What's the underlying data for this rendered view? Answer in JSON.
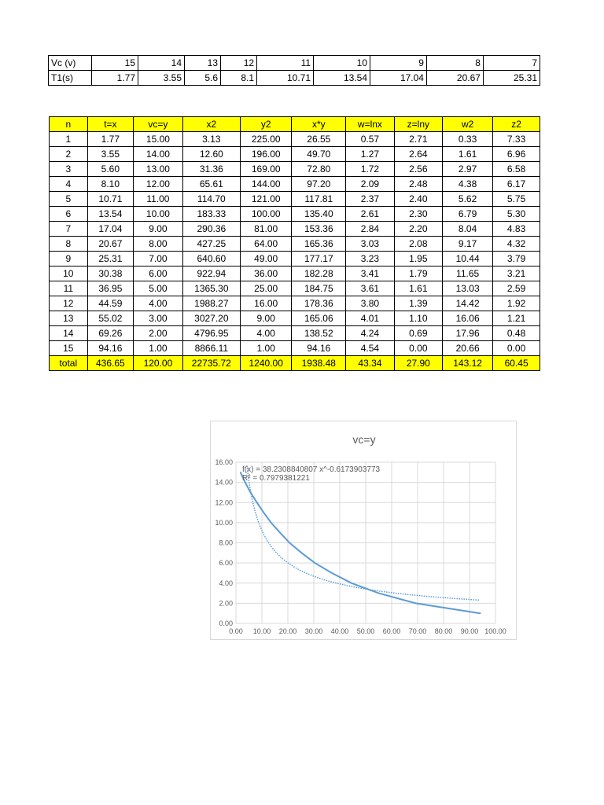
{
  "top_table": {
    "rows": [
      {
        "label": "Vc (v)",
        "values": [
          "15",
          "14",
          "13",
          "12",
          "11",
          "10",
          "9",
          "8",
          "7"
        ]
      },
      {
        "label": "T1(s)",
        "values": [
          "1.77",
          "3.55",
          "5.6",
          "8.1",
          "10.71",
          "13.54",
          "17.04",
          "20.67",
          "25.31"
        ]
      }
    ]
  },
  "main_table": {
    "headers": [
      "n",
      "t=x",
      "vc=y",
      "x2",
      "y2",
      "x*y",
      "w=lnx",
      "z=lny",
      "w2",
      "z2"
    ],
    "rows": [
      [
        "1",
        "1.77",
        "15.00",
        "3.13",
        "225.00",
        "26.55",
        "0.57",
        "2.71",
        "0.33",
        "7.33"
      ],
      [
        "2",
        "3.55",
        "14.00",
        "12.60",
        "196.00",
        "49.70",
        "1.27",
        "2.64",
        "1.61",
        "6.96"
      ],
      [
        "3",
        "5.60",
        "13.00",
        "31.36",
        "169.00",
        "72.80",
        "1.72",
        "2.56",
        "2.97",
        "6.58"
      ],
      [
        "4",
        "8.10",
        "12.00",
        "65.61",
        "144.00",
        "97.20",
        "2.09",
        "2.48",
        "4.38",
        "6.17"
      ],
      [
        "5",
        "10.71",
        "11.00",
        "114.70",
        "121.00",
        "117.81",
        "2.37",
        "2.40",
        "5.62",
        "5.75"
      ],
      [
        "6",
        "13.54",
        "10.00",
        "183.33",
        "100.00",
        "135.40",
        "2.61",
        "2.30",
        "6.79",
        "5.30"
      ],
      [
        "7",
        "17.04",
        "9.00",
        "290.36",
        "81.00",
        "153.36",
        "2.84",
        "2.20",
        "8.04",
        "4.83"
      ],
      [
        "8",
        "20.67",
        "8.00",
        "427.25",
        "64.00",
        "165.36",
        "3.03",
        "2.08",
        "9.17",
        "4.32"
      ],
      [
        "9",
        "25.31",
        "7.00",
        "640.60",
        "49.00",
        "177.17",
        "3.23",
        "1.95",
        "10.44",
        "3.79"
      ],
      [
        "10",
        "30.38",
        "6.00",
        "922.94",
        "36.00",
        "182.28",
        "3.41",
        "1.79",
        "11.65",
        "3.21"
      ],
      [
        "11",
        "36.95",
        "5.00",
        "1365.30",
        "25.00",
        "184.75",
        "3.61",
        "1.61",
        "13.03",
        "2.59"
      ],
      [
        "12",
        "44.59",
        "4.00",
        "1988.27",
        "16.00",
        "178.36",
        "3.80",
        "1.39",
        "14.42",
        "1.92"
      ],
      [
        "13",
        "55.02",
        "3.00",
        "3027.20",
        "9.00",
        "165.06",
        "4.01",
        "1.10",
        "16.06",
        "1.21"
      ],
      [
        "14",
        "69.26",
        "2.00",
        "4796.95",
        "4.00",
        "138.52",
        "4.24",
        "0.69",
        "17.96",
        "0.48"
      ],
      [
        "15",
        "94.16",
        "1.00",
        "8866.11",
        "1.00",
        "94.16",
        "4.54",
        "0.00",
        "20.66",
        "0.00"
      ]
    ],
    "total": [
      "total",
      "436.65",
      "120.00",
      "22735.72",
      "1240.00",
      "1938.48",
      "43.34",
      "27.90",
      "143.12",
      "60.45"
    ]
  },
  "colors": {
    "header_fill": "#ffff00",
    "series": "#5b9bd5",
    "trend": "#5b9bd5",
    "grid": "#d9d9d9"
  },
  "chart_data": {
    "type": "scatter",
    "title": "vc=y",
    "x": [
      1.77,
      3.55,
      5.6,
      8.1,
      10.71,
      13.54,
      17.04,
      20.67,
      25.31,
      30.38,
      36.95,
      44.59,
      55.02,
      69.26,
      94.16
    ],
    "y": [
      15,
      14,
      13,
      12,
      11,
      10,
      9,
      8,
      7,
      6,
      5,
      4,
      3,
      2,
      1
    ],
    "xlim": [
      0,
      100
    ],
    "ylim": [
      0,
      16
    ],
    "xticks": [
      "0.00",
      "10.00",
      "20.00",
      "30.00",
      "40.00",
      "50.00",
      "60.00",
      "70.00",
      "80.00",
      "90.00",
      "100.00"
    ],
    "yticks": [
      "0.00",
      "2.00",
      "4.00",
      "6.00",
      "8.00",
      "10.00",
      "12.00",
      "14.00",
      "16.00"
    ],
    "trendline": {
      "type": "power",
      "a": 38.2308840807,
      "b": -0.6173903773
    },
    "equation": "f(x) = 38.2308840807 x^-0.6173903773",
    "r2": "R² = 0.7979381221",
    "grid": true
  }
}
